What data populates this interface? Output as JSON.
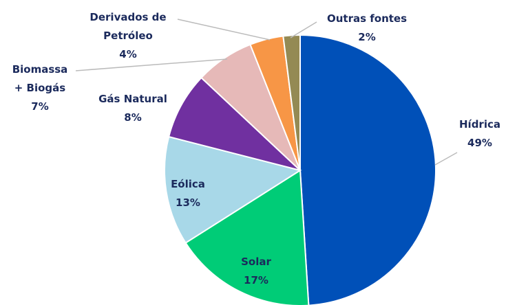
{
  "chart_data": {
    "type": "pie",
    "categories": [
      "Hídrica",
      "Solar",
      "Eólica",
      "Gás Natural",
      "Biomassa + Biogás",
      "Derivados de Petróleo",
      "Outras fontes"
    ],
    "values": [
      49,
      17,
      13,
      8,
      7,
      4,
      2
    ],
    "value_labels": [
      "49%",
      "17%",
      "13%",
      "8%",
      "7%",
      "4%",
      "2%"
    ],
    "colors": [
      "#0050b8",
      "#00cc77",
      "#a8d8e8",
      "#7030a0",
      "#e6b9b8",
      "#f79646",
      "#948a54"
    ]
  }
}
